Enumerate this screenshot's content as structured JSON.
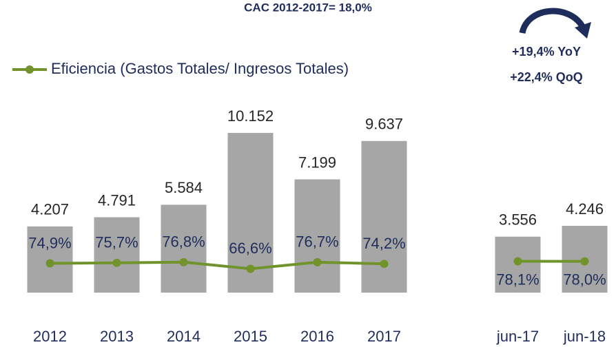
{
  "chart_data": {
    "type": "bar",
    "title": "CAC 2012-2017= 18,0%",
    "annotations": [
      "+19,4% YoY",
      "+22,4% QoQ"
    ],
    "categories": [
      "2012",
      "2013",
      "2014",
      "2015",
      "2016",
      "2017",
      null,
      "jun-17",
      "jun-18"
    ],
    "series": [
      {
        "type": "bar",
        "color": "#a6a6a6",
        "values": [
          4207,
          4791,
          5584,
          10152,
          7199,
          9637,
          null,
          3556,
          4246
        ],
        "value_labels": [
          "4.207",
          "4.791",
          "5.584",
          "10.152",
          "7.199",
          "9.637",
          null,
          "3.556",
          "4.246"
        ]
      },
      {
        "type": "line",
        "name": "Eficiencia (Gastos Totales/ Ingresos Totales)",
        "color": "#70932c",
        "axis": "y2",
        "values": [
          74.9,
          75.7,
          76.8,
          66.6,
          76.7,
          74.2,
          null,
          78.1,
          78.0
        ],
        "value_labels": [
          "74,9%",
          "75,7%",
          "76,8%",
          "66,6%",
          "76,7%",
          "74,2%",
          null,
          "78,1%",
          "78,0%"
        ]
      }
    ],
    "ylim": [
      0,
      12000
    ],
    "y2lim": [
      30,
      320
    ],
    "legend": "top-left"
  }
}
